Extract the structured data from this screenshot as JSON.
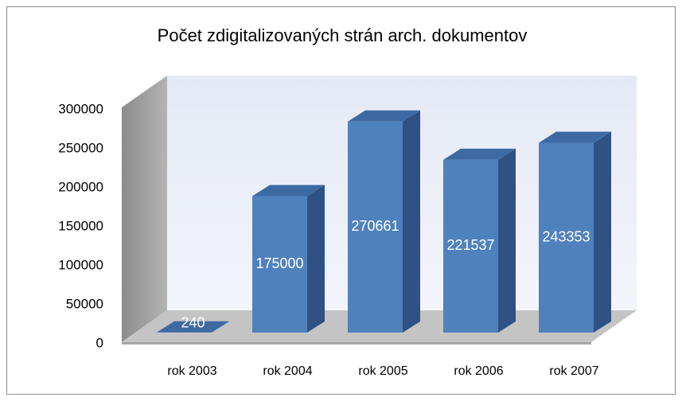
{
  "chart_data": {
    "type": "bar",
    "title": "Počet zdigitalizovaných strán arch. dokumentov",
    "categories": [
      "rok 2003",
      "rok 2004",
      "rok 2005",
      "rok 2006",
      "rok 2007"
    ],
    "values": [
      240,
      175000,
      270661,
      221537,
      243353
    ],
    "color": "#4f81bd",
    "ylim": [
      0,
      300000
    ],
    "yticks": [
      0,
      50000,
      100000,
      150000,
      200000,
      250000,
      300000
    ],
    "grid": false
  }
}
